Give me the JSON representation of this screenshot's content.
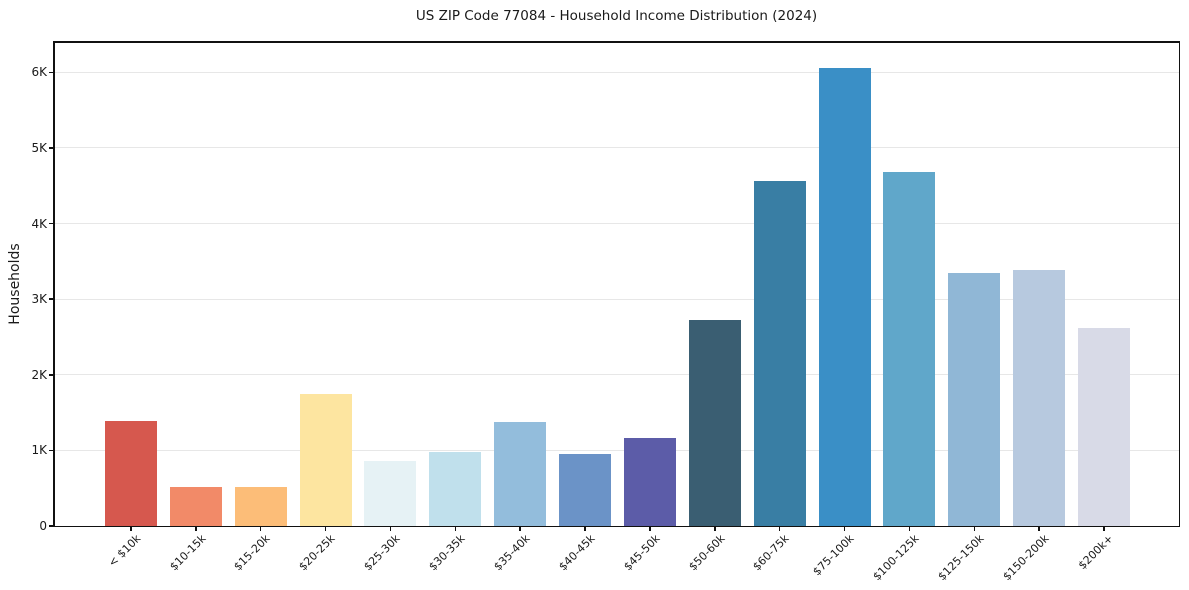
{
  "figure": {
    "background": "#ffffff",
    "text_color": "#1a1a1a",
    "spine_color": "#111111"
  },
  "chart_data": {
    "type": "bar",
    "title": "US ZIP Code 77084 - Household Income Distribution (2024)",
    "xlabel": "",
    "ylabel": "Households",
    "categories": [
      "< $10k",
      "$10-15k",
      "$15-20k",
      "$20-25k",
      "$25-30k",
      "$30-35k",
      "$35-40k",
      "$40-45k",
      "$45-50k",
      "$50-60k",
      "$60-75k",
      "$75-100k",
      "$100-125k",
      "$125-150k",
      "$150-200k",
      "$200k+"
    ],
    "values": [
      1390,
      510,
      510,
      1750,
      860,
      980,
      1370,
      950,
      1170,
      2730,
      4560,
      6060,
      4680,
      3340,
      3390,
      2620
    ],
    "bar_colors": [
      "#d6584e",
      "#f28a68",
      "#fcbd78",
      "#fde5a0",
      "#e6f2f5",
      "#c0e0ec",
      "#93bddc",
      "#6b93c7",
      "#5c5ca8",
      "#3a5e72",
      "#397ea4",
      "#3a8fc6",
      "#60a7ca",
      "#90b7d6",
      "#b7c9df",
      "#d8dae7"
    ],
    "ylim": [
      0,
      6400
    ],
    "ytick_values": [
      0,
      1000,
      2000,
      3000,
      4000,
      5000,
      6000
    ],
    "ytick_labels": [
      "0",
      "1K",
      "2K",
      "3K",
      "4K",
      "5K",
      "6K"
    ],
    "grid": "horizontal",
    "grid_color": "#e7e7e7",
    "legend": "none"
  }
}
